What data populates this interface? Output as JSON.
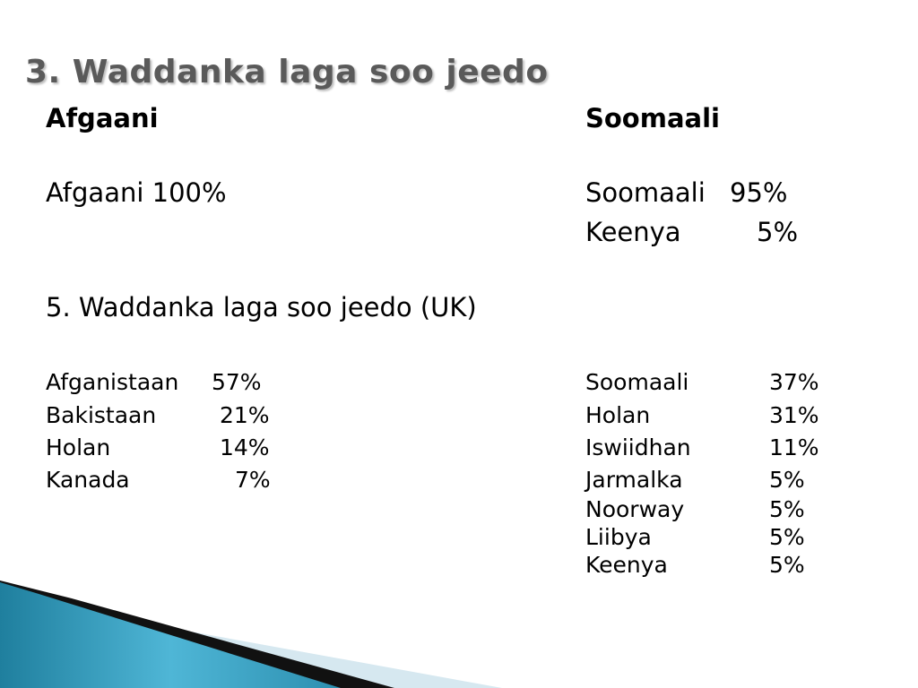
{
  "slide": {
    "title_number": "3.",
    "title_text": "Waddanka laga soo jeedo",
    "left_heading": "Afgaani",
    "right_heading": "Soomaali",
    "left_summary": "Afgaani 100%",
    "right_summary": [
      {
        "name": "Soomaali",
        "pct": "95%"
      },
      {
        "name": "Keenya",
        "pct": "5%"
      }
    ],
    "section_heading": "5. Waddanka laga soo jeedo (UK)",
    "left_list": [
      {
        "name": "Afganistaan",
        "pct": "57%"
      },
      {
        "name": "Bakistaan",
        "pct": "21%"
      },
      {
        "name": "Holan",
        "pct": "14%"
      },
      {
        "name": "Kanada",
        "pct": "7%"
      }
    ],
    "right_list": [
      {
        "name": "Soomaali",
        "pct": "37%"
      },
      {
        "name": "Holan",
        "pct": "31%"
      },
      {
        "name": "Iswiidhan",
        "pct": "11%"
      },
      {
        "name": "Jarmalka",
        "pct": "5%"
      },
      {
        "name": "Noorway",
        "pct": "5%"
      },
      {
        "name": "Liibya",
        "pct": "5%"
      },
      {
        "name": "Keenya",
        "pct": "5%"
      }
    ]
  }
}
